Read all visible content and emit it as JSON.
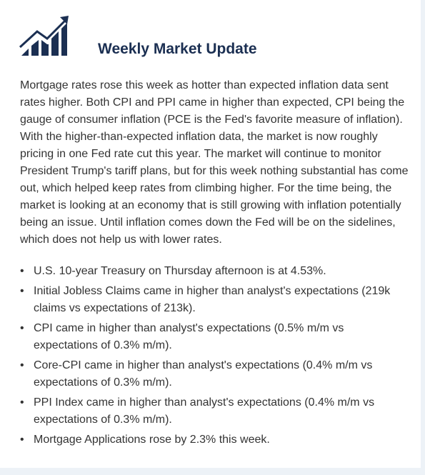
{
  "header": {
    "title": "Weekly Market Update"
  },
  "paragraph": "Mortgage rates rose this week as hotter than expected inflation data sent rates higher. Both CPI and PPI came in higher than expected, CPI being the gauge of consumer inflation (PCE is the Fed's favorite measure of inflation). With the higher-than-expected inflation data, the market is now roughly pricing in one Fed rate cut this year. The market will continue to monitor President Trump's tariff plans, but for this week nothing substantial has come out, which helped keep rates from climbing higher. For the time being, the market is looking at an economy that is still growing with inflation potentially being an issue. Until inflation comes down the Fed will be on the sidelines, which does not help us with lower rates.",
  "bullets": [
    "U.S. 10-year Treasury on Thursday afternoon is at 4.53%.",
    "Initial Jobless Claims came in higher than analyst's expectations (219k claims vs expectations of 213k).",
    "CPI came in higher than analyst's expectations (0.5% m/m vs expectations of 0.3% m/m).",
    "Core-CPI came in higher than analyst's expectations (0.4% m/m vs expectations of 0.3% m/m).",
    "PPI Index came in higher than analyst's expectations (0.4% m/m vs expectations of 0.3% m/m).",
    "Mortgage Applications rose by 2.3% this week."
  ]
}
